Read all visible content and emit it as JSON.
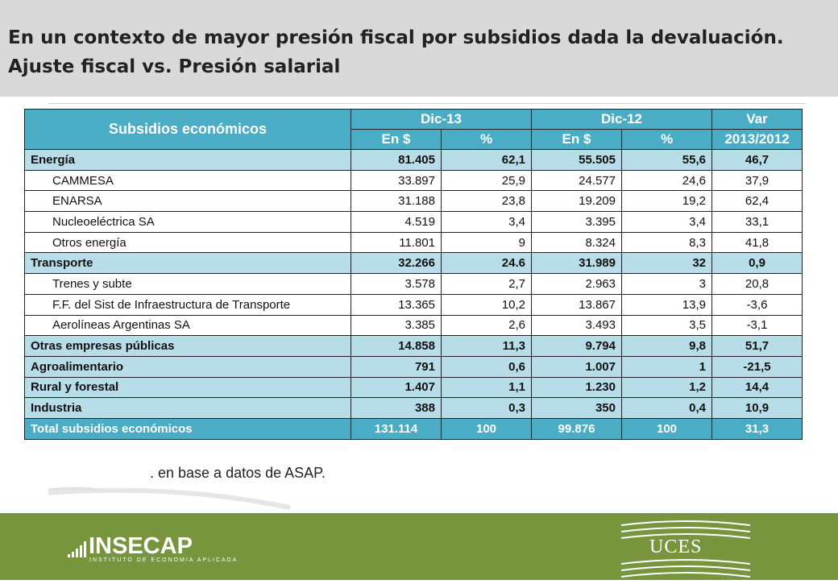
{
  "header": {
    "line1": "En un contexto de mayor presión fiscal por subsidios dada la devaluación.",
    "line2": "Ajuste fiscal vs. Presión salarial"
  },
  "table": {
    "title": "Subsidios económicos",
    "col_dic13": "Dic-13",
    "col_dic12": "Dic-12",
    "col_var": "Var",
    "col_var2": "2013/2012",
    "en": "En $",
    "pct": "%",
    "rows": [
      {
        "label": "Energía",
        "a": "81.405",
        "b": "62,1",
        "c": "55.505",
        "d": "55,6",
        "e": "46,7"
      },
      {
        "label": "CAMMESA",
        "a": "33.897",
        "b": "25,9",
        "c": "24.577",
        "d": "24,6",
        "e": "37,9"
      },
      {
        "label": "ENARSA",
        "a": "31.188",
        "b": "23,8",
        "c": "19.209",
        "d": "19,2",
        "e": "62,4"
      },
      {
        "label": "Nucleoeléctrica SA",
        "a": "4.519",
        "b": "3,4",
        "c": "3.395",
        "d": "3,4",
        "e": "33,1"
      },
      {
        "label": "Otros energía",
        "a": "11.801",
        "b": "9",
        "c": "8.324",
        "d": "8,3",
        "e": "41,8"
      },
      {
        "label": "Transporte",
        "a": "32.266",
        "b": "24.6",
        "c": "31.989",
        "d": "32",
        "e": "0,9"
      },
      {
        "label": "Trenes y subte",
        "a": "3.578",
        "b": "2,7",
        "c": "2.963",
        "d": "3",
        "e": "20,8"
      },
      {
        "label": "F.F. del Sist de Infraestructura de Transporte",
        "a": "13.365",
        "b": "10,2",
        "c": "13.867",
        "d": "13,9",
        "e": "-3,6"
      },
      {
        "label": "Aerolíneas Argentinas SA",
        "a": "3.385",
        "b": "2,6",
        "c": "3.493",
        "d": "3,5",
        "e": "-3,1"
      },
      {
        "label": "Otras empresas públicas",
        "a": "14.858",
        "b": "11,3",
        "c": "9.794",
        "d": "9,8",
        "e": "51,7"
      },
      {
        "label": "Agroalimentario",
        "a": "791",
        "b": "0,6",
        "c": "1.007",
        "d": "1",
        "e": "-21,5"
      },
      {
        "label": "Rural y forestal",
        "a": "1.407",
        "b": "1,1",
        "c": "1.230",
        "d": "1,2",
        "e": "14,4"
      },
      {
        "label": "Industria",
        "a": "388",
        "b": "0,3",
        "c": "350",
        "d": "0,4",
        "e": "10,9"
      },
      {
        "label": "Total subsidios económicos",
        "a": "131.114",
        "b": "100",
        "c": "99.876",
        "d": "100",
        "e": "31,3"
      }
    ]
  },
  "source": ". en base a datos de ASAP.",
  "footer": {
    "left_logo": "INSECAP",
    "left_logo_sub": "INSTITUTO DE ECONOMIA APLICADA",
    "right_logo": "UCES"
  },
  "colors": {
    "header_bg": "#d9d9d9",
    "table_header": "#4bacc6",
    "row_highlight": "#b7dde8",
    "footer_bg": "#76953d"
  }
}
